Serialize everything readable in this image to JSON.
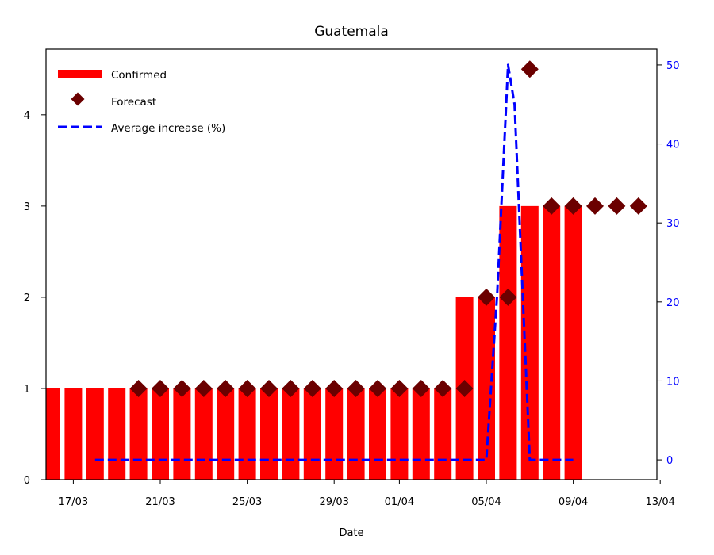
{
  "chart_data": {
    "type": "bar",
    "title": "Guatemala",
    "xlabel": "Date",
    "ylabel": "",
    "y2label": "",
    "x_ticks": [
      "17/03",
      "21/03",
      "25/03",
      "29/03",
      "01/04",
      "05/04",
      "09/04",
      "13/04"
    ],
    "y_ticks": [
      "0",
      "1",
      "2",
      "3",
      "4"
    ],
    "y2_ticks": [
      "0",
      "10",
      "20",
      "30",
      "40",
      "50"
    ],
    "ylim": [
      0,
      4.72
    ],
    "y2lim": [
      -2.5,
      52
    ],
    "x_range_days": [
      16,
      44
    ],
    "x_tick_days": [
      17,
      21,
      25,
      29,
      32,
      36,
      40,
      44
    ],
    "legend_position": "top-left",
    "colors": {
      "confirmed": "#ff0000",
      "forecast": "#6b0000",
      "average": "#0000ff",
      "right_axis": "#0000ff"
    },
    "series": [
      {
        "name": "Confirmed",
        "kind": "bar",
        "x_days": [
          16,
          17,
          18,
          19,
          20,
          21,
          22,
          23,
          24,
          25,
          26,
          27,
          28,
          29,
          30,
          31,
          32,
          33,
          34,
          35,
          36,
          37,
          38,
          39,
          40
        ],
        "values": [
          1,
          1,
          1,
          1,
          1,
          1,
          1,
          1,
          1,
          1,
          1,
          1,
          1,
          1,
          1,
          1,
          1,
          1,
          1,
          2,
          2,
          3,
          3,
          3,
          3
        ]
      },
      {
        "name": "Forecast",
        "kind": "scatter",
        "x_days": [
          20,
          21,
          22,
          23,
          24,
          25,
          26,
          27,
          28,
          29,
          30,
          31,
          32,
          33,
          34,
          35,
          36,
          37,
          38,
          39,
          40,
          41,
          42,
          43
        ],
        "values": [
          1,
          1,
          1,
          1,
          1,
          1,
          1,
          1,
          1,
          1,
          1,
          1,
          1,
          1,
          1,
          1,
          2,
          2,
          4.5,
          3,
          3,
          3,
          3,
          3
        ]
      },
      {
        "name": "Average increase (%)",
        "kind": "line",
        "axis": "right",
        "x_days": [
          18,
          19,
          20,
          21,
          22,
          23,
          24,
          25,
          26,
          27,
          28,
          29,
          30,
          31,
          32,
          33,
          34,
          35,
          36,
          36.5,
          37,
          37.3,
          38,
          39,
          40
        ],
        "values": [
          0,
          0,
          0,
          0,
          0,
          0,
          0,
          0,
          0,
          0,
          0,
          0,
          0,
          0,
          0,
          0,
          0,
          0,
          0,
          21,
          50,
          45,
          0,
          0,
          0
        ]
      }
    ]
  }
}
